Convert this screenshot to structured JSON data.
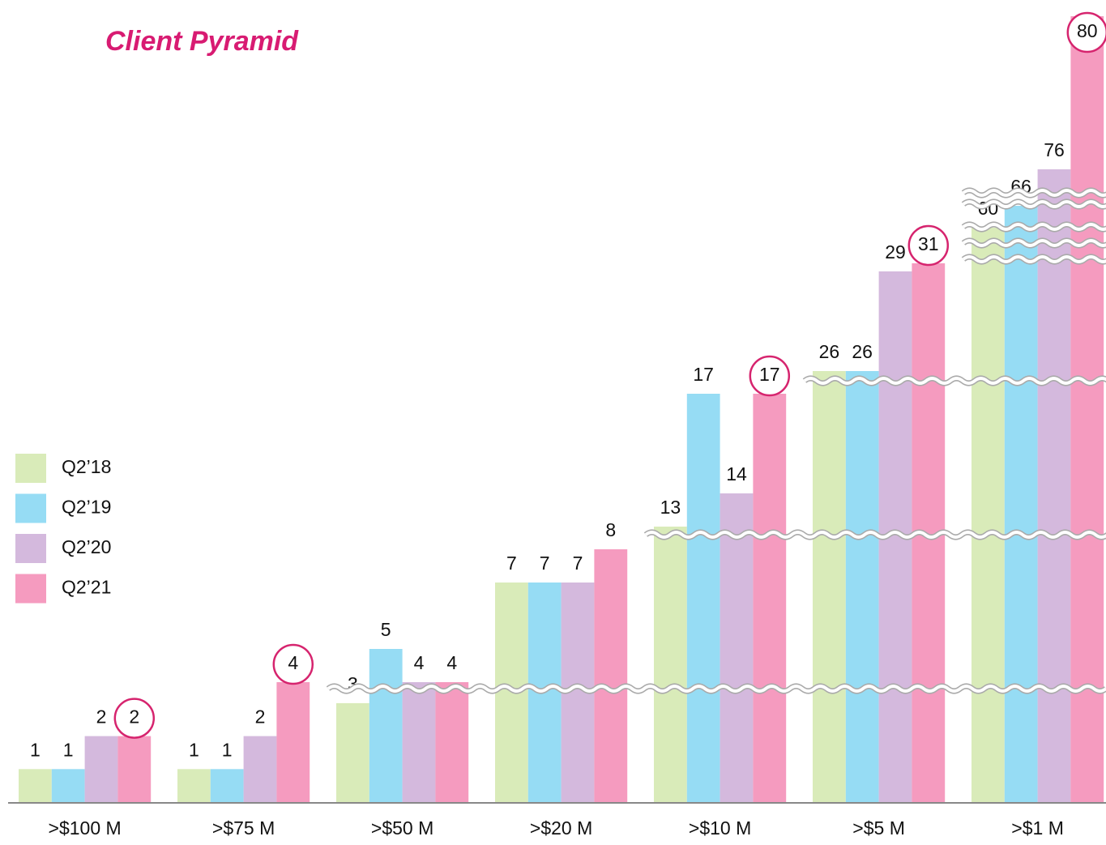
{
  "chart_data": {
    "type": "bar",
    "title": "Client Pyramid",
    "categories": [
      ">$100 M",
      ">$75 M",
      ">$50 M",
      ">$20 M",
      ">$10 M",
      ">$5 M",
      ">$1 M"
    ],
    "series": [
      {
        "name": "Q2’18",
        "color": "#d9ebb9",
        "values": [
          1,
          1,
          3,
          7,
          13,
          26,
          60
        ]
      },
      {
        "name": "Q2’19",
        "color": "#96dcf4",
        "values": [
          1,
          1,
          5,
          7,
          17,
          26,
          66
        ]
      },
      {
        "name": "Q2’20",
        "color": "#d4b9dd",
        "values": [
          2,
          2,
          4,
          7,
          14,
          29,
          76
        ]
      },
      {
        "name": "Q2’21",
        "color": "#f59bbf",
        "values": [
          2,
          4,
          4,
          8,
          17,
          31,
          80
        ]
      }
    ],
    "legend": "left"
  }
}
